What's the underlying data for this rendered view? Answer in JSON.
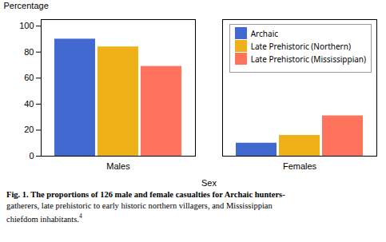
{
  "chart_data": {
    "type": "bar",
    "categories": [
      "Males",
      "Females"
    ],
    "series": [
      {
        "name": "Archaic",
        "values": [
          90,
          10
        ]
      },
      {
        "name": "Late Prehistoric (Northern)",
        "values": [
          84,
          16
        ]
      },
      {
        "name": "Late Prehistoric (Mississippian)",
        "values": [
          69,
          31
        ]
      }
    ],
    "xlabel": "Sex",
    "ylabel": "Percentage",
    "ylim": [
      0,
      105
    ],
    "yticks": [
      0,
      20,
      40,
      60,
      80,
      100
    ],
    "grid": false,
    "legend": "upper right",
    "caption": [
      "Fig. 1.  The proportions of 126 male and female casualties for Archaic hunters-",
      "gatherers, late prehistoric to early historic northern villagers, and Mississippian",
      "chiefdom inhabitants."
    ],
    "caption_superscript": "4"
  }
}
